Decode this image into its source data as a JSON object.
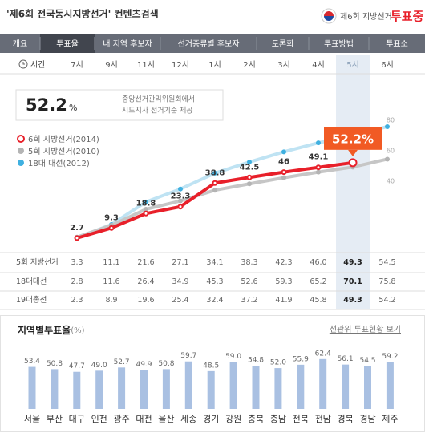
{
  "header": {
    "title": "'제6회 전국동시지방선거' 컨텐츠검색",
    "logo_text": "제6회 지방선거",
    "logo_status": "투표중"
  },
  "tabs": [
    "개요",
    "투표율",
    "내 지역 후보자",
    "선거종류별 후보자",
    "토론회",
    "투표방법",
    "투표소"
  ],
  "time_label": "시간",
  "headline": {
    "value": 52.2,
    "unit": "%",
    "note": [
      "중앙선거관리위원회에서",
      "시도지사 선거기준 제공"
    ]
  },
  "chart_data": [
    {
      "type": "line",
      "categories": [
        "7시",
        "9시",
        "11시",
        "12시",
        "1시",
        "2시",
        "3시",
        "4시",
        "5시",
        "6시"
      ],
      "ylim": [
        0,
        80
      ],
      "yticks": [
        40,
        60,
        80
      ],
      "series": [
        {
          "name": "6회 지방선거(2014)",
          "color": "#e8202a",
          "values": [
            2.7,
            9.3,
            18.8,
            23.3,
            38.8,
            42.5,
            46,
            49.1,
            52.2,
            null
          ],
          "value_labels": [
            "2.7",
            "9.3",
            "18.8",
            "23.3",
            "38.8",
            "42.5",
            "46",
            "49.1",
            "52.2%",
            null
          ]
        },
        {
          "name": "5회 지방선거(2010)",
          "color": "#b4b4b4",
          "values": [
            3.3,
            11.1,
            21.6,
            27.1,
            34.1,
            38.3,
            42.3,
            46.0,
            49.3,
            54.5
          ]
        },
        {
          "name": "18대 대선(2012)",
          "color": "#3fb0e0",
          "values": [
            2.8,
            11.6,
            26.4,
            34.9,
            45.3,
            52.6,
            59.3,
            65.2,
            70.1,
            75.8
          ]
        }
      ]
    },
    {
      "type": "bar",
      "title": "지역별투표율",
      "title_unit": "(%)",
      "link": "선관위 투표현황 보기",
      "color": "#a9c0e2",
      "ylim": [
        5,
        65
      ],
      "categories": [
        "서울",
        "부산",
        "대구",
        "인천",
        "광주",
        "대전",
        "울산",
        "세종",
        "경기",
        "강원",
        "충북",
        "충남",
        "전북",
        "전남",
        "경북",
        "경남",
        "제주"
      ],
      "values": [
        53.4,
        50.8,
        47.7,
        49.0,
        52.7,
        49.9,
        50.8,
        59.7,
        48.5,
        59.0,
        54.8,
        52.0,
        55.9,
        62.4,
        56.1,
        54.5,
        59.2
      ],
      "value_labels": [
        "53.4",
        "50.8",
        "47.7",
        "49.0",
        "52.7",
        "49.9",
        "50.8",
        "59.7",
        "48.5",
        "59.0",
        "54.8",
        "52.0",
        "55.9",
        "62.4",
        "56.1",
        "54.5",
        "59.2"
      ]
    }
  ],
  "table": {
    "rows": [
      {
        "label": "5회 지방선거",
        "cells": [
          "3.3",
          "11.1",
          "21.6",
          "27.1",
          "34.1",
          "38.3",
          "42.3",
          "46.0",
          "49.3",
          "54.5"
        ]
      },
      {
        "label": "18대대선",
        "cells": [
          "2.8",
          "11.6",
          "26.4",
          "34.9",
          "45.3",
          "52.6",
          "59.3",
          "65.2",
          "70.1",
          "75.8"
        ]
      },
      {
        "label": "19대총선",
        "cells": [
          "2.3",
          "8.9",
          "19.6",
          "25.4",
          "32.4",
          "37.2",
          "41.9",
          "45.8",
          "49.3",
          "54.2"
        ]
      }
    ]
  }
}
